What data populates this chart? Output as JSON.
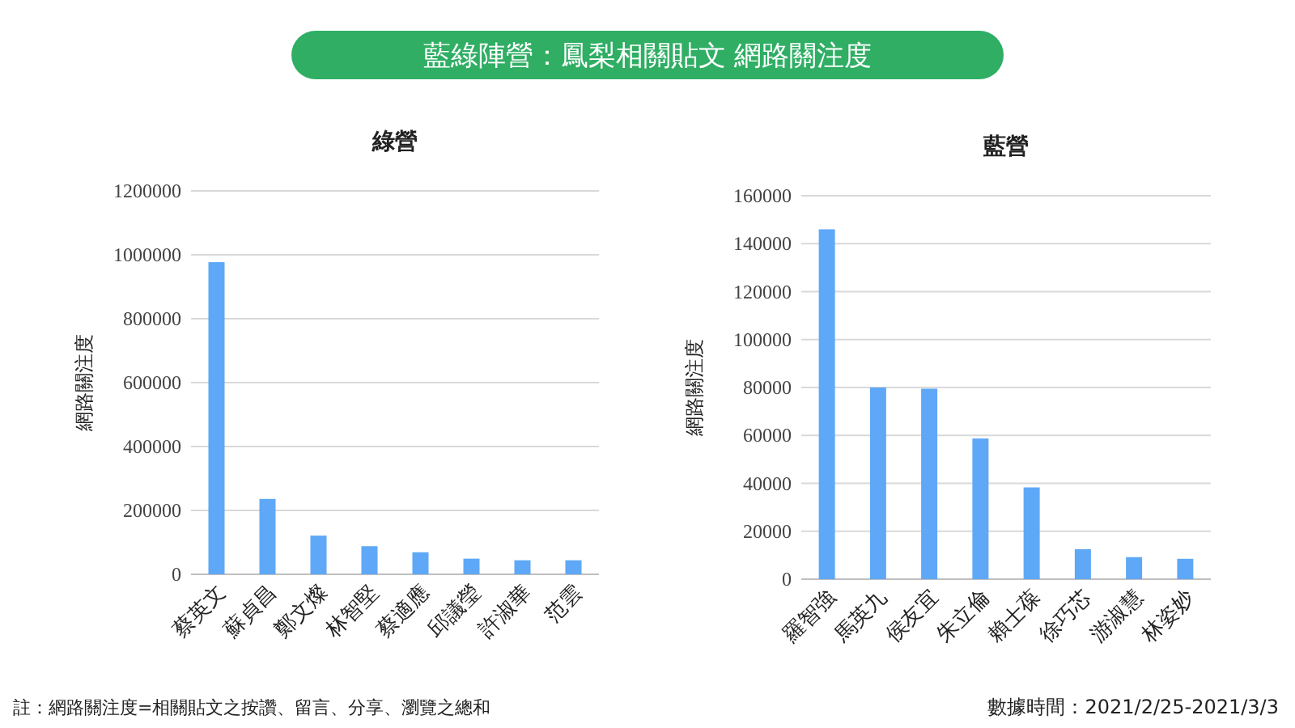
{
  "chart_data": [
    {
      "type": "bar",
      "title": "綠營",
      "ylabel": "網路關注度",
      "categories": [
        "蔡英文",
        "蘇貞昌",
        "鄭文燦",
        "林智堅",
        "蔡適應",
        "邱議瑩",
        "許淑華",
        "范雲"
      ],
      "values": [
        977000,
        236000,
        121000,
        88000,
        69000,
        49000,
        44000,
        44000
      ],
      "color": "#5ea8f7",
      "ylim": [
        0,
        1200000
      ],
      "yticks": [
        0,
        200000,
        400000,
        600000,
        800000,
        1000000,
        1200000
      ],
      "grid": "y",
      "annotations": [
        "藍綠陣營：鳳梨相關貼文 網路關注度",
        "註：網路關注度=相關貼文之按讚、留言、分享、瀏覽之總和"
      ]
    },
    {
      "type": "bar",
      "title": "藍營",
      "ylabel": "網路關注度",
      "categories": [
        "羅智強",
        "馬英九",
        "侯友宜",
        "朱立倫",
        "賴士葆",
        "徐巧芯",
        "游淑慧",
        "林姿妙"
      ],
      "values": [
        146000,
        80000,
        79500,
        58700,
        38300,
        12500,
        9200,
        8500
      ],
      "color": "#5ea8f7",
      "ylim": [
        0,
        160000
      ],
      "yticks": [
        0,
        20000,
        40000,
        60000,
        80000,
        100000,
        120000,
        140000,
        160000
      ],
      "grid": "y",
      "annotations": [
        "數據時間：2021/2/25-2021/3/3"
      ]
    }
  ]
}
